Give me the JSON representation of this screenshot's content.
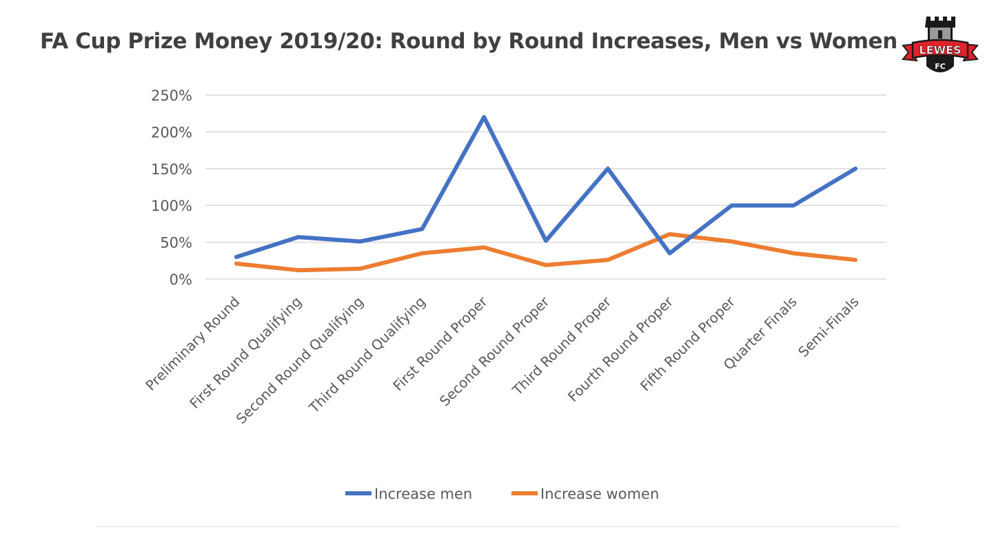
{
  "title": "FA Cup Prize Money 2019/20: Round by Round Increases, Men vs Women",
  "logo": {
    "text": "LEWES",
    "subtext": "FC",
    "icon": "castle-tower-icon",
    "colors": {
      "red": "#e4202a",
      "black": "#1a1a1a",
      "white": "#ffffff"
    }
  },
  "chart_data": {
    "type": "line",
    "title": "",
    "xlabel": "",
    "ylabel": "",
    "ylim": [
      0,
      250
    ],
    "yticks": [
      0,
      50,
      100,
      150,
      200,
      250
    ],
    "ytick_labels": [
      "0%",
      "50%",
      "100%",
      "150%",
      "200%",
      "250%"
    ],
    "y_unit": "%",
    "grid": true,
    "legend_position": "bottom",
    "categories": [
      "Preliminary Round",
      "First Round Qualifying",
      "Second Round Qualifying",
      "Third Round Qualifying",
      "First Round Proper",
      "Second Round Proper",
      "Third Round Proper",
      "Fourth Round Proper",
      "Fifth Round Proper",
      "Quarter Finals",
      "Semi-Finals"
    ],
    "series": [
      {
        "name": "Increase men",
        "color": "#4472c4",
        "values": [
          30,
          57,
          51,
          68,
          220,
          52,
          150,
          35,
          100,
          100,
          150
        ]
      },
      {
        "name": "Increase women",
        "color": "#ed7d31",
        "values": [
          21,
          12,
          14,
          35,
          43,
          19,
          26,
          61,
          51,
          35,
          26
        ]
      }
    ]
  }
}
